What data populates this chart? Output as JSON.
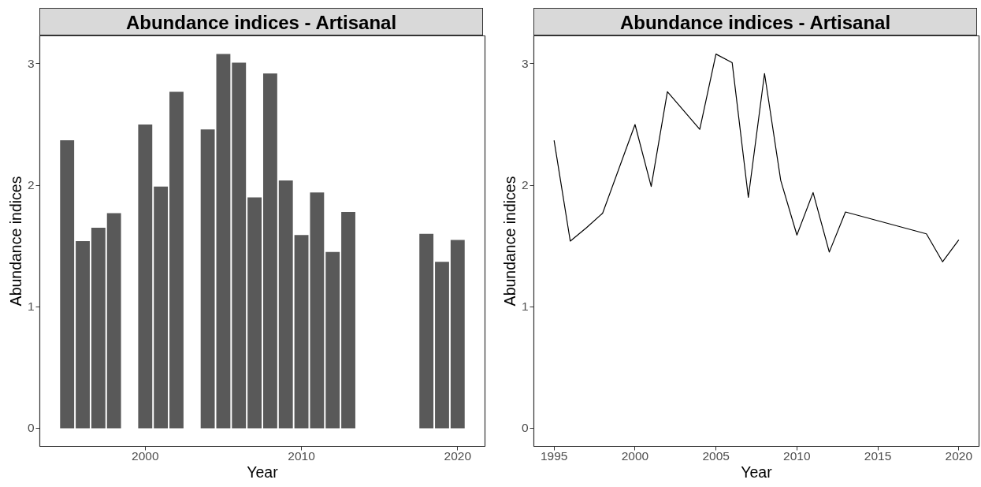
{
  "chart_data": [
    {
      "type": "bar",
      "title": "Abundance indices - Artisanal",
      "xlabel": "Year",
      "ylabel": "Abundance indices",
      "color": "#595959",
      "x": [
        1995,
        1996,
        1997,
        1998,
        2000,
        2001,
        2002,
        2004,
        2005,
        2006,
        2007,
        2008,
        2009,
        2010,
        2011,
        2012,
        2013,
        2018,
        2019,
        2020
      ],
      "values": [
        2.37,
        1.54,
        1.65,
        1.77,
        2.5,
        1.99,
        2.77,
        2.46,
        3.08,
        3.01,
        1.9,
        2.92,
        2.04,
        1.59,
        1.94,
        1.45,
        1.78,
        1.6,
        1.37,
        1.55
      ],
      "xlim": [
        1993.25,
        2021.75
      ],
      "xticks": [
        2000,
        2010,
        2020
      ],
      "ylim": [
        -0.15,
        3.23
      ],
      "yticks": [
        0,
        1,
        2,
        3
      ]
    },
    {
      "type": "line",
      "title": "Abundance indices - Artisanal",
      "xlabel": "Year",
      "ylabel": "Abundance indices",
      "color": "#000000",
      "x": [
        1995,
        1996,
        1997,
        1998,
        2000,
        2001,
        2002,
        2004,
        2005,
        2006,
        2007,
        2008,
        2009,
        2010,
        2011,
        2012,
        2013,
        2018,
        2019,
        2020
      ],
      "values": [
        2.37,
        1.54,
        1.65,
        1.77,
        2.5,
        1.99,
        2.77,
        2.46,
        3.08,
        3.01,
        1.9,
        2.92,
        2.04,
        1.59,
        1.94,
        1.45,
        1.78,
        1.6,
        1.37,
        1.55
      ],
      "xlim": [
        1993.75,
        2021.25
      ],
      "xticks": [
        1995,
        2000,
        2005,
        2010,
        2015,
        2020
      ],
      "ylim": [
        -0.15,
        3.23
      ],
      "yticks": [
        0,
        1,
        2,
        3
      ]
    }
  ]
}
